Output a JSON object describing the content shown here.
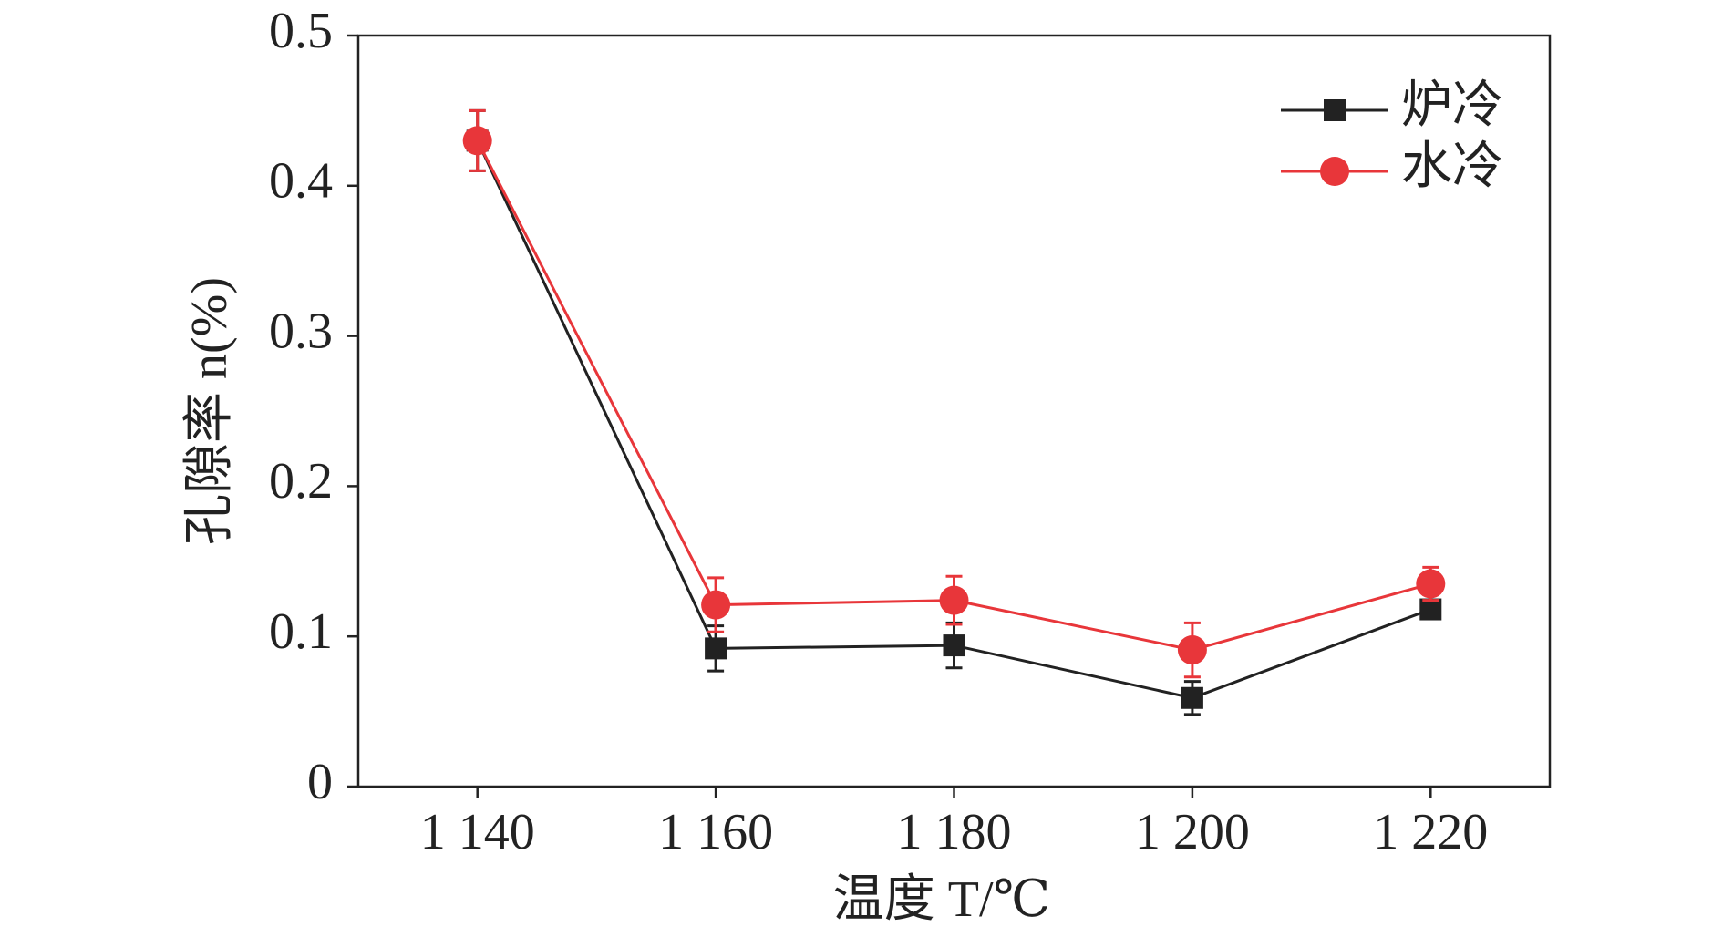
{
  "chart_data": {
    "type": "line",
    "xlabel": "温度 T/℃",
    "ylabel": "孔隙率 n(%)",
    "x": [
      1140,
      1160,
      1180,
      1200,
      1220
    ],
    "xlim": [
      1130,
      1230
    ],
    "xticks": [
      {
        "value": 1140,
        "label": "1 140"
      },
      {
        "value": 1160,
        "label": "1 160"
      },
      {
        "value": 1180,
        "label": "1 180"
      },
      {
        "value": 1200,
        "label": "1 200"
      },
      {
        "value": 1220,
        "label": "1 220"
      }
    ],
    "ylim": [
      0,
      0.5
    ],
    "yticks": [
      0,
      0.1,
      0.2,
      0.3,
      0.4,
      0.5
    ],
    "legend": "upper right",
    "series": [
      {
        "name": "炉冷",
        "color": "#222222",
        "marker": "square",
        "values": [
          0.43,
          0.092,
          0.094,
          0.059,
          0.118
        ],
        "errors": [
          0.02,
          0.015,
          0.015,
          0.011,
          0.005
        ]
      },
      {
        "name": "水冷",
        "color": "#e8363a",
        "marker": "circle",
        "values": [
          0.43,
          0.121,
          0.124,
          0.091,
          0.135
        ],
        "errors": [
          0.02,
          0.018,
          0.016,
          0.018,
          0.011
        ]
      }
    ]
  }
}
